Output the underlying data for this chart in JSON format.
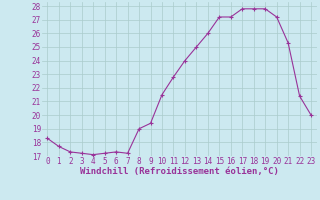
{
  "x": [
    0,
    1,
    2,
    3,
    4,
    5,
    6,
    7,
    8,
    9,
    10,
    11,
    12,
    13,
    14,
    15,
    16,
    17,
    18,
    19,
    20,
    21,
    22,
    23
  ],
  "y": [
    18.3,
    17.7,
    17.3,
    17.2,
    17.1,
    17.2,
    17.3,
    17.2,
    19.0,
    19.4,
    21.5,
    22.8,
    24.0,
    25.0,
    26.0,
    27.2,
    27.2,
    27.8,
    27.8,
    27.8,
    27.2,
    25.3,
    21.4,
    20.0
  ],
  "line_color": "#993399",
  "marker": "+",
  "marker_size": 3,
  "marker_lw": 0.8,
  "line_width": 0.8,
  "bg_color": "#cce9f0",
  "grid_color": "#aacccc",
  "xlabel": "Windchill (Refroidissement éolien,°C)",
  "xlabel_color": "#993399",
  "tick_color": "#993399",
  "ylim": [
    17,
    28
  ],
  "xlim": [
    -0.5,
    23.5
  ],
  "yticks": [
    17,
    18,
    19,
    20,
    21,
    22,
    23,
    24,
    25,
    26,
    27,
    28
  ],
  "xticks": [
    0,
    1,
    2,
    3,
    4,
    5,
    6,
    7,
    8,
    9,
    10,
    11,
    12,
    13,
    14,
    15,
    16,
    17,
    18,
    19,
    20,
    21,
    22,
    23
  ],
  "tick_fontsize": 5.5,
  "xlabel_fontsize": 6.5
}
